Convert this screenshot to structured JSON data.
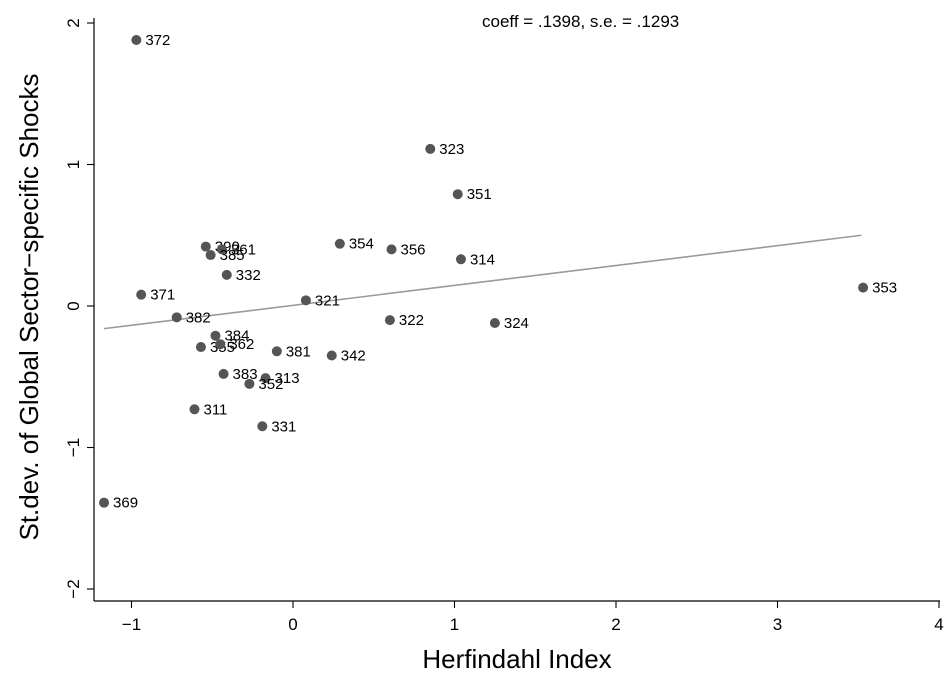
{
  "chart_data": {
    "type": "scatter",
    "title": "",
    "annotation": "coeff = .1398,  s.e. = .1293",
    "xlabel": "Herfindahl Index",
    "ylabel": "St.dev. of Global Sector−specific Shocks",
    "xlim": [
      -1.2,
      4
    ],
    "ylim": [
      -2.15,
      2.1
    ],
    "xticks": [
      -1,
      0,
      1,
      2,
      3,
      4
    ],
    "xtick_labels": [
      "−1",
      "0",
      "1",
      "2",
      "3",
      "4"
    ],
    "yticks": [
      -2,
      -1,
      0,
      1,
      2
    ],
    "ytick_labels": [
      "−2",
      "−1",
      "0",
      "1",
      "2"
    ],
    "grid": false,
    "point_color": "#555555",
    "fit_line_color": "#9a9a9a",
    "fit_line": {
      "x": [
        -1.17,
        3.52
      ],
      "y": [
        -0.16,
        0.5
      ]
    },
    "points": [
      {
        "label": "372",
        "x": -0.97,
        "y": 1.88
      },
      {
        "label": "323",
        "x": 0.85,
        "y": 1.11
      },
      {
        "label": "351",
        "x": 1.02,
        "y": 0.79
      },
      {
        "label": "354",
        "x": 0.29,
        "y": 0.44
      },
      {
        "label": "356",
        "x": 0.61,
        "y": 0.4
      },
      {
        "label": "314",
        "x": 1.04,
        "y": 0.33
      },
      {
        "label": "390",
        "x": -0.54,
        "y": 0.42
      },
      {
        "label": "361",
        "x": -0.44,
        "y": 0.4
      },
      {
        "label": "385",
        "x": -0.51,
        "y": 0.36
      },
      {
        "label": "332",
        "x": -0.41,
        "y": 0.22
      },
      {
        "label": "371",
        "x": -0.94,
        "y": 0.08
      },
      {
        "label": "321",
        "x": 0.08,
        "y": 0.04
      },
      {
        "label": "353",
        "x": 3.53,
        "y": 0.13
      },
      {
        "label": "382",
        "x": -0.72,
        "y": -0.08
      },
      {
        "label": "322",
        "x": 0.6,
        "y": -0.1
      },
      {
        "label": "324",
        "x": 1.25,
        "y": -0.12
      },
      {
        "label": "384",
        "x": -0.48,
        "y": -0.21
      },
      {
        "label": "355",
        "x": -0.57,
        "y": -0.29
      },
      {
        "label": "362",
        "x": -0.45,
        "y": -0.27
      },
      {
        "label": "381",
        "x": -0.1,
        "y": -0.32
      },
      {
        "label": "342",
        "x": 0.24,
        "y": -0.35
      },
      {
        "label": "383",
        "x": -0.43,
        "y": -0.48
      },
      {
        "label": "313",
        "x": -0.17,
        "y": -0.51
      },
      {
        "label": "352",
        "x": -0.27,
        "y": -0.55
      },
      {
        "label": "311",
        "x": -0.61,
        "y": -0.73
      },
      {
        "label": "331",
        "x": -0.19,
        "y": -0.85
      },
      {
        "label": "369",
        "x": -1.17,
        "y": -1.39
      }
    ]
  }
}
